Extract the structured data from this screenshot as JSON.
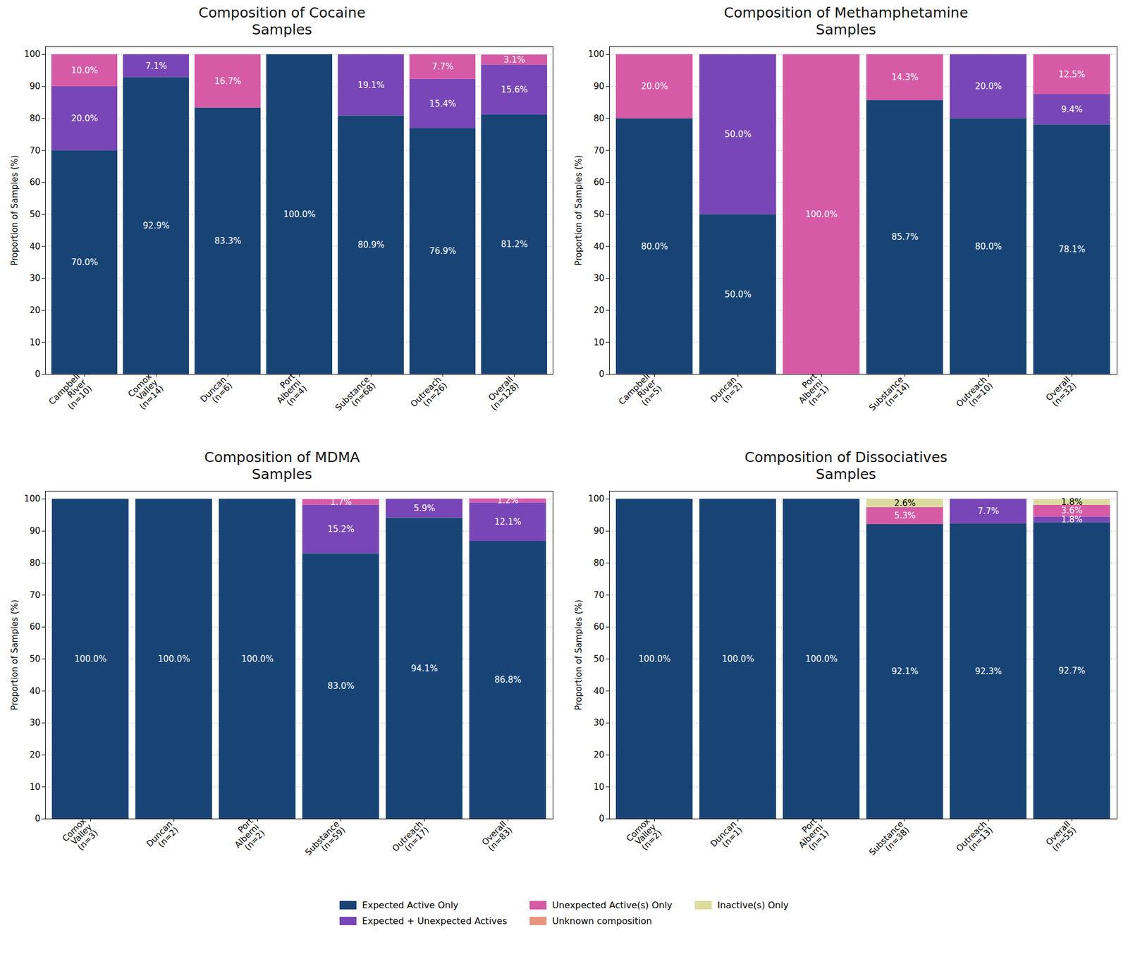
{
  "chart_data": [
    {
      "type": "bar",
      "title": "Composition of Cocaine\nSamples",
      "ylabel": "Proportion of Samples (%)",
      "categories": [
        "Campbell\nRiver\n(n=10)",
        "Comox\nValley\n(n=14)",
        "Duncan\n(n=6)",
        "Port\nAlberni\n(n=4)",
        "Substance\n(n=68)",
        "Outreach\n(n=26)",
        "Overall\n(n=128)"
      ],
      "series": [
        {
          "name": "Expected Active Only",
          "color": "#184475",
          "values": [
            70.0,
            92.9,
            83.3,
            100.0,
            80.9,
            76.9,
            81.2
          ],
          "value_labels": [
            "70.0%",
            "92.9%",
            "83.3%",
            "100.0%",
            "80.9%",
            "76.9%",
            "81.2%"
          ]
        },
        {
          "name": "Expected + Unexpected Actives",
          "color": "#7846b6",
          "values": [
            20.0,
            7.1,
            0,
            0,
            19.1,
            15.4,
            15.6
          ],
          "value_labels": [
            "20.0%",
            "7.1%",
            null,
            null,
            "19.1%",
            "15.4%",
            "15.6%"
          ]
        },
        {
          "name": "Unexpected Active(s) Only",
          "color": "#d65aa6",
          "values": [
            10.0,
            0,
            16.7,
            0,
            0,
            7.7,
            3.1
          ],
          "value_labels": [
            "10.0%",
            null,
            "16.7%",
            null,
            null,
            "7.7%",
            "3.1%"
          ]
        },
        {
          "name": "Unknown composition",
          "color": "#e8957e",
          "values": [
            0,
            0,
            0,
            0,
            0,
            0,
            0
          ],
          "value_labels": [
            null,
            null,
            null,
            null,
            null,
            null,
            null
          ]
        },
        {
          "name": "Inactive(s) Only",
          "color": "#dcdb9f",
          "values": [
            0,
            0,
            0,
            0,
            0,
            0,
            0
          ],
          "value_labels": [
            null,
            null,
            null,
            null,
            null,
            null,
            null
          ]
        }
      ],
      "ylim": [
        0,
        102.5
      ],
      "yticks": [
        0,
        10,
        20,
        30,
        40,
        50,
        60,
        70,
        80,
        90,
        100
      ],
      "grid": true,
      "stacked": true,
      "data_labels": true,
      "legend": "bottom"
    },
    {
      "type": "bar",
      "title": "Composition of Methamphetamine\nSamples",
      "ylabel": "Proportion of Samples (%)",
      "categories": [
        "Campbell\nRiver\n(n=5)",
        "Duncan\n(n=2)",
        "Port\nAlberni\n(n=1)",
        "Substance\n(n=14)",
        "Outreach\n(n=10)",
        "Overall\n(n=32)"
      ],
      "series": [
        {
          "name": "Expected Active Only",
          "color": "#184475",
          "values": [
            80.0,
            50.0,
            0,
            85.7,
            80.0,
            78.1
          ],
          "value_labels": [
            "80.0%",
            "50.0%",
            null,
            "85.7%",
            "80.0%",
            "78.1%"
          ]
        },
        {
          "name": "Expected + Unexpected Actives",
          "color": "#7846b6",
          "values": [
            0,
            50.0,
            0,
            0,
            20.0,
            9.4
          ],
          "value_labels": [
            null,
            "50.0%",
            null,
            null,
            "20.0%",
            "9.4%"
          ]
        },
        {
          "name": "Unexpected Active(s) Only",
          "color": "#d65aa6",
          "values": [
            20.0,
            0,
            100.0,
            14.3,
            0,
            12.5
          ],
          "value_labels": [
            "20.0%",
            null,
            "100.0%",
            "14.3%",
            null,
            "12.5%"
          ]
        },
        {
          "name": "Unknown composition",
          "color": "#e8957e",
          "values": [
            0,
            0,
            0,
            0,
            0,
            0
          ],
          "value_labels": [
            null,
            null,
            null,
            null,
            null,
            null
          ]
        },
        {
          "name": "Inactive(s) Only",
          "color": "#dcdb9f",
          "values": [
            0,
            0,
            0,
            0,
            0,
            0
          ],
          "value_labels": [
            null,
            null,
            null,
            null,
            null,
            null
          ]
        }
      ],
      "ylim": [
        0,
        102.5
      ],
      "yticks": [
        0,
        10,
        20,
        30,
        40,
        50,
        60,
        70,
        80,
        90,
        100
      ],
      "grid": true,
      "stacked": true,
      "data_labels": true,
      "legend": "bottom"
    },
    {
      "type": "bar",
      "title": "Composition of MDMA\nSamples",
      "ylabel": "Proportion of Samples (%)",
      "categories": [
        "Comox\nValley\n(n=3)",
        "Duncan\n(n=2)",
        "Port\nAlberni\n(n=2)",
        "Substance\n(n=59)",
        "Outreach\n(n=17)",
        "Overall\n(n=83)"
      ],
      "series": [
        {
          "name": "Expected Active Only",
          "color": "#184475",
          "values": [
            100.0,
            100.0,
            100.0,
            83.0,
            94.1,
            86.8
          ],
          "value_labels": [
            "100.0%",
            "100.0%",
            "100.0%",
            "83.0%",
            "94.1%",
            "86.8%"
          ]
        },
        {
          "name": "Expected + Unexpected Actives",
          "color": "#7846b6",
          "values": [
            0,
            0,
            0,
            15.2,
            5.9,
            12.1
          ],
          "value_labels": [
            null,
            null,
            null,
            "15.2%",
            "5.9%",
            "12.1%"
          ]
        },
        {
          "name": "Unexpected Active(s) Only",
          "color": "#d65aa6",
          "values": [
            0,
            0,
            0,
            1.7,
            0,
            1.2
          ],
          "value_labels": [
            null,
            null,
            null,
            "1.7%",
            null,
            "1.2%"
          ]
        },
        {
          "name": "Unknown composition",
          "color": "#e8957e",
          "values": [
            0,
            0,
            0,
            0,
            0,
            0
          ],
          "value_labels": [
            null,
            null,
            null,
            null,
            null,
            null
          ]
        },
        {
          "name": "Inactive(s) Only",
          "color": "#dcdb9f",
          "values": [
            0,
            0,
            0,
            0,
            0,
            0
          ],
          "value_labels": [
            null,
            null,
            null,
            null,
            null,
            null
          ]
        }
      ],
      "ylim": [
        0,
        102.5
      ],
      "yticks": [
        0,
        10,
        20,
        30,
        40,
        50,
        60,
        70,
        80,
        90,
        100
      ],
      "grid": true,
      "stacked": true,
      "data_labels": true,
      "legend": "bottom"
    },
    {
      "type": "bar",
      "title": "Composition of Dissociatives\nSamples",
      "ylabel": "Proportion of Samples (%)",
      "categories": [
        "Comox\nValley\n(n=2)",
        "Duncan\n(n=1)",
        "Port\nAlberni\n(n=1)",
        "Substance\n(n=38)",
        "Outreach\n(n=13)",
        "Overall\n(n=55)"
      ],
      "series": [
        {
          "name": "Expected Active Only",
          "color": "#184475",
          "values": [
            100.0,
            100.0,
            100.0,
            92.1,
            92.3,
            92.7
          ],
          "value_labels": [
            "100.0%",
            "100.0%",
            "100.0%",
            "92.1%",
            "92.3%",
            "92.7%"
          ]
        },
        {
          "name": "Expected + Unexpected Actives",
          "color": "#7846b6",
          "values": [
            0,
            0,
            0,
            0,
            7.7,
            1.8
          ],
          "value_labels": [
            null,
            null,
            null,
            null,
            "7.7%",
            "1.8%"
          ]
        },
        {
          "name": "Unexpected Active(s) Only",
          "color": "#d65aa6",
          "values": [
            0,
            0,
            0,
            5.3,
            0,
            3.6
          ],
          "value_labels": [
            null,
            null,
            null,
            "5.3%",
            null,
            "3.6%"
          ]
        },
        {
          "name": "Unknown composition",
          "color": "#e8957e",
          "values": [
            0,
            0,
            0,
            0,
            0,
            0
          ],
          "value_labels": [
            null,
            null,
            null,
            null,
            null,
            null
          ]
        },
        {
          "name": "Inactive(s) Only",
          "color": "#dcdb9f",
          "values": [
            0,
            0,
            0,
            2.6,
            0,
            1.8
          ],
          "value_labels": [
            null,
            null,
            null,
            "2.6%",
            null,
            "1.8%"
          ]
        }
      ],
      "ylim": [
        0,
        102.5
      ],
      "yticks": [
        0,
        10,
        20,
        30,
        40,
        50,
        60,
        70,
        80,
        90,
        100
      ],
      "grid": true,
      "stacked": true,
      "data_labels": true,
      "legend": "bottom"
    }
  ]
}
